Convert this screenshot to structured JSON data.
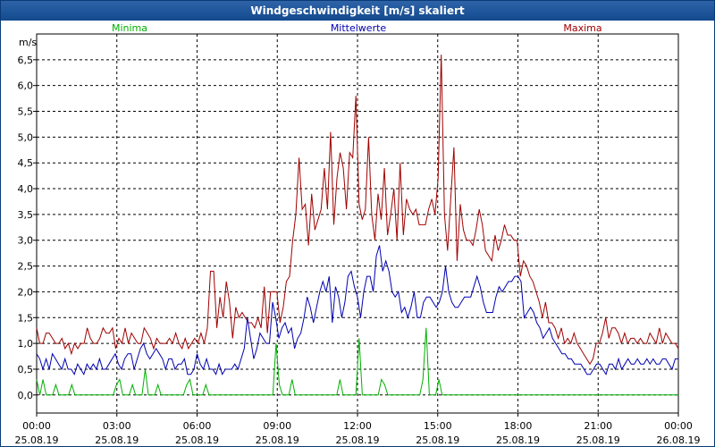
{
  "window": {
    "title": "Windgeschwindigkeit [m/s] skaliert"
  },
  "colors": {
    "min": "#00b000",
    "mean": "#0000b0",
    "max": "#a00000",
    "grid": "#000000"
  },
  "chart_data": {
    "type": "line",
    "title": "Windgeschwindigkeit [m/s] skaliert",
    "ylabel": "m/s",
    "xlabel": "",
    "ylim": [
      -0.35,
      7.0
    ],
    "xlim": [
      0,
      24
    ],
    "y_ticks": [
      "0,0",
      "0,5",
      "1,0",
      "1,5",
      "2,0",
      "2,5",
      "3,0",
      "3,5",
      "4,0",
      "4,5",
      "5,0",
      "5,5",
      "6,0",
      "6,5"
    ],
    "x_ticks": [
      {
        "hour": 0,
        "time": "00:00",
        "date": "25.08.19"
      },
      {
        "hour": 3,
        "time": "03:00",
        "date": "25.08.19"
      },
      {
        "hour": 6,
        "time": "06:00",
        "date": "25.08.19"
      },
      {
        "hour": 9,
        "time": "09:00",
        "date": "25.08.19"
      },
      {
        "hour": 12,
        "time": "12:00",
        "date": "25.08.19"
      },
      {
        "hour": 15,
        "time": "15:00",
        "date": "25.08.19"
      },
      {
        "hour": 18,
        "time": "18:00",
        "date": "25.08.19"
      },
      {
        "hour": 21,
        "time": "21:00",
        "date": "25.08.19"
      },
      {
        "hour": 24,
        "time": "00:00",
        "date": "26.08.19"
      }
    ],
    "legend": [
      "Minima",
      "Mittelwerte",
      "Maxima"
    ],
    "series": [
      {
        "name": "Maxima",
        "values": [
          1.3,
          1.0,
          1.0,
          1.2,
          1.2,
          1.1,
          1.0,
          1.0,
          1.1,
          0.9,
          1.0,
          0.8,
          1.0,
          0.9,
          1.0,
          1.0,
          1.3,
          1.1,
          1.0,
          1.0,
          1.1,
          1.3,
          1.2,
          1.2,
          1.3,
          0.9,
          1.1,
          1.0,
          1.3,
          1.0,
          1.2,
          1.1,
          1.0,
          1.0,
          1.3,
          1.2,
          1.1,
          0.9,
          1.1,
          1.0,
          1.0,
          1.0,
          1.1,
          1.0,
          1.2,
          1.0,
          0.9,
          1.1,
          0.9,
          1.0,
          1.1,
          1.0,
          1.2,
          1.0,
          1.3,
          2.4,
          2.4,
          1.3,
          1.9,
          1.5,
          2.2,
          1.8,
          1.1,
          1.7,
          1.5,
          1.6,
          1.5,
          1.4,
          1.4,
          1.3,
          1.5,
          1.3,
          2.1,
          1.2,
          2.0,
          2.0,
          2.0,
          1.4,
          1.7,
          2.2,
          2.3,
          3.0,
          3.5,
          4.6,
          3.6,
          3.7,
          2.9,
          3.9,
          3.2,
          3.4,
          3.6,
          4.4,
          3.6,
          5.1,
          3.3,
          4.2,
          4.7,
          4.4,
          3.6,
          4.7,
          4.6,
          5.8,
          3.7,
          3.4,
          3.6,
          5.0,
          3.5,
          3.0,
          3.9,
          3.4,
          4.4,
          3.1,
          3.5,
          4.0,
          3.0,
          4.5,
          3.1,
          3.8,
          3.6,
          3.5,
          3.6,
          3.3,
          3.3,
          3.3,
          3.6,
          3.8,
          3.5,
          4.2,
          6.6,
          3.5,
          2.8,
          3.8,
          4.8,
          2.6,
          3.7,
          3.2,
          3.0,
          3.0,
          2.9,
          3.2,
          3.6,
          3.3,
          2.8,
          2.7,
          2.6,
          3.1,
          2.8,
          3.0,
          3.3,
          3.1,
          3.1,
          3.0,
          3.0,
          2.3,
          2.6,
          2.5,
          2.3,
          2.2,
          2.0,
          1.8,
          1.5,
          1.8,
          1.4,
          1.4,
          1.3,
          1.1,
          1.3,
          1.0,
          1.1,
          1.0,
          1.2,
          1.0,
          0.9,
          0.8,
          0.7,
          0.6,
          0.7,
          1.0,
          1.0,
          1.2,
          1.5,
          1.1,
          1.3,
          1.3,
          1.2,
          1.0,
          1.2,
          1.0,
          1.1,
          1.1,
          1.0,
          1.1,
          1.0,
          1.0,
          1.2,
          1.1,
          1.0,
          1.3,
          1.0,
          1.2,
          1.1,
          1.0,
          1.0,
          0.9
        ]
      },
      {
        "name": "Mittelwerte",
        "values": [
          0.8,
          0.7,
          0.5,
          0.7,
          0.5,
          0.8,
          0.7,
          0.6,
          0.5,
          0.7,
          0.5,
          0.5,
          0.4,
          0.6,
          0.5,
          0.4,
          0.6,
          0.5,
          0.6,
          0.5,
          0.7,
          0.5,
          0.5,
          0.6,
          0.7,
          0.8,
          0.6,
          0.5,
          0.7,
          0.8,
          0.8,
          0.5,
          0.7,
          0.9,
          1.0,
          0.8,
          0.7,
          0.8,
          0.9,
          0.8,
          0.7,
          0.5,
          0.7,
          0.7,
          0.5,
          0.6,
          0.6,
          0.7,
          0.4,
          0.4,
          0.5,
          0.8,
          0.6,
          0.5,
          0.7,
          0.5,
          0.5,
          0.4,
          0.6,
          0.4,
          0.5,
          0.5,
          0.5,
          0.6,
          0.5,
          0.7,
          0.9,
          1.5,
          1.1,
          0.7,
          0.9,
          1.2,
          1.1,
          1.0,
          1.0,
          1.8,
          1.5,
          1.1,
          1.3,
          1.4,
          1.2,
          1.3,
          0.9,
          1.1,
          1.2,
          1.5,
          1.9,
          1.7,
          1.4,
          1.7,
          2.0,
          2.2,
          2.0,
          2.3,
          1.4,
          2.1,
          1.9,
          1.5,
          1.8,
          2.3,
          2.4,
          2.1,
          1.9,
          1.5,
          2.0,
          2.3,
          2.3,
          2.0,
          2.7,
          2.9,
          2.4,
          2.6,
          2.4,
          2.0,
          1.9,
          2.0,
          1.6,
          1.7,
          1.5,
          1.7,
          2.0,
          1.5,
          1.5,
          1.8,
          1.9,
          1.9,
          1.8,
          1.7,
          1.8,
          2.0,
          2.5,
          2.0,
          1.8,
          1.7,
          1.7,
          1.8,
          1.9,
          1.9,
          1.9,
          2.1,
          2.3,
          2.1,
          1.8,
          1.6,
          1.6,
          1.6,
          1.9,
          2.1,
          2.0,
          2.1,
          2.2,
          2.2,
          2.3,
          2.3,
          2.2,
          1.5,
          1.6,
          1.7,
          1.6,
          1.4,
          1.3,
          1.1,
          1.2,
          1.3,
          1.1,
          1.0,
          0.9,
          0.8,
          0.8,
          0.7,
          0.7,
          0.6,
          0.6,
          0.6,
          0.5,
          0.4,
          0.4,
          0.5,
          0.6,
          0.6,
          0.5,
          0.4,
          0.6,
          0.6,
          0.5,
          0.7,
          0.5,
          0.6,
          0.7,
          0.6,
          0.6,
          0.7,
          0.6,
          0.6,
          0.7,
          0.6,
          0.7,
          0.6,
          0.6,
          0.7,
          0.7,
          0.6,
          0.5,
          0.7,
          0.7
        ]
      },
      {
        "name": "Minima",
        "values": [
          0.3,
          0.0,
          0.3,
          0.0,
          0.0,
          0.0,
          0.2,
          0.0,
          0.0,
          0.0,
          0.0,
          0.2,
          0.0,
          0.0,
          0.0,
          0.0,
          0.0,
          0.0,
          0.0,
          0.0,
          0.0,
          0.0,
          0.0,
          0.0,
          0.0,
          0.2,
          0.3,
          0.0,
          0.0,
          0.0,
          0.2,
          0.0,
          0.0,
          0.0,
          0.5,
          0.0,
          0.0,
          0.0,
          0.2,
          0.0,
          0.0,
          0.0,
          0.0,
          0.0,
          0.0,
          0.0,
          0.0,
          0.2,
          0.3,
          0.0,
          0.0,
          0.0,
          0.0,
          0.2,
          0.0,
          0.0,
          0.0,
          0.0,
          0.0,
          0.0,
          0.0,
          0.0,
          0.0,
          0.0,
          0.0,
          0.0,
          0.0,
          0.0,
          0.0,
          0.0,
          0.0,
          0.0,
          0.0,
          0.0,
          0.0,
          1.0,
          0.2,
          0.0,
          0.0,
          0.0,
          0.3,
          0.0,
          0.0,
          0.0,
          0.0,
          0.0,
          0.0,
          0.0,
          0.0,
          0.0,
          0.0,
          0.0,
          0.0,
          0.0,
          0.0,
          0.3,
          0.0,
          0.0,
          0.0,
          0.0,
          0.0,
          1.1,
          0.0,
          0.0,
          0.0,
          0.0,
          0.0,
          0.0,
          0.3,
          0.2,
          0.0,
          0.0,
          0.0,
          0.0,
          0.0,
          0.0,
          0.0,
          0.0,
          0.0,
          0.0,
          0.0,
          0.3,
          1.3,
          0.0,
          0.0,
          0.0,
          0.3,
          0.0,
          0.0,
          0.0,
          0.0,
          0.0,
          0.0,
          0.0,
          0.0,
          0.0,
          0.0,
          0.0,
          0.0,
          0.0,
          0.0,
          0.0,
          0.0,
          0.0,
          0.0,
          0.0,
          0.0,
          0.0,
          0.0,
          0.0,
          0.0,
          0.0,
          0.0,
          0.0,
          0.0,
          0.0,
          0.0,
          0.0,
          0.0,
          0.0,
          0.0,
          0.0,
          0.0,
          0.0,
          0.0,
          0.0,
          0.0,
          0.0,
          0.0,
          0.0,
          0.0,
          0.0,
          0.0,
          0.0,
          0.0,
          0.0,
          0.0,
          0.0,
          0.0,
          0.0,
          0.0,
          0.0,
          0.0,
          0.0,
          0.0,
          0.0,
          0.0,
          0.0,
          0.0,
          0.0,
          0.0,
          0.0,
          0.0,
          0.0,
          0.0,
          0.0,
          0.0,
          0.0,
          0.0,
          0.0,
          0.0,
          0.0
        ]
      }
    ]
  }
}
